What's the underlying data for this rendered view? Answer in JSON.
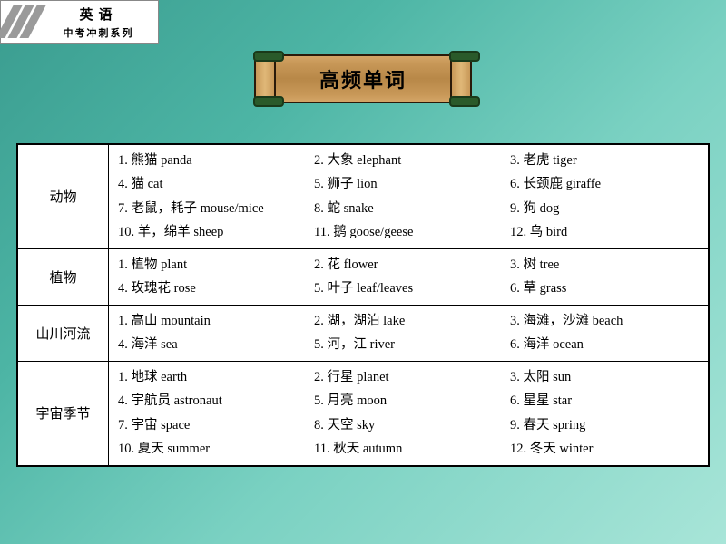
{
  "logo": {
    "main": "英语",
    "sub": "中考冲刺系列"
  },
  "title": "高频单词",
  "styling": {
    "background_gradient": [
      "#3a9c8f",
      "#4db5a5",
      "#7ad1c2",
      "#a8e5d8"
    ],
    "table_bg": "#ffffff",
    "table_border": "#000000",
    "banner_wood": "#c89858",
    "banner_border": "#2a1a0a",
    "banner_roll": "#2a5a2a",
    "logo_stripe": "#9a9a9a",
    "font_main": "SimSun",
    "title_fontsize": 22,
    "body_fontsize": 14.5,
    "label_fontsize": 15
  },
  "categories": [
    {
      "label": "动物",
      "items": [
        "1. 熊猫 panda",
        "2. 大象 elephant",
        "3. 老虎 tiger",
        "4. 猫 cat",
        "5. 狮子 lion",
        "6. 长颈鹿 giraffe",
        "7. 老鼠，耗子 mouse/mice",
        "8. 蛇 snake",
        "9. 狗 dog",
        "10. 羊，绵羊 sheep",
        "11. 鹅 goose/geese",
        "12. 鸟 bird"
      ]
    },
    {
      "label": "植物",
      "items": [
        "1. 植物 plant",
        "2. 花 flower",
        "3. 树 tree",
        "4. 玫瑰花 rose",
        "5. 叶子 leaf/leaves",
        "6. 草 grass"
      ]
    },
    {
      "label": "山川河流",
      "items": [
        "1. 高山 mountain",
        "2. 湖，湖泊 lake",
        "3. 海滩，沙滩 beach",
        "4. 海洋 sea",
        "5. 河，江 river",
        "6. 海洋 ocean"
      ]
    },
    {
      "label": "宇宙季节",
      "items": [
        "1. 地球 earth",
        "2. 行星 planet",
        "3. 太阳 sun",
        "4. 宇航员 astronaut",
        "5. 月亮 moon",
        "6. 星星 star",
        "7. 宇宙 space",
        "8. 天空 sky",
        "9. 春天 spring",
        "10. 夏天 summer",
        "11. 秋天 autumn",
        "12. 冬天 winter"
      ]
    }
  ]
}
